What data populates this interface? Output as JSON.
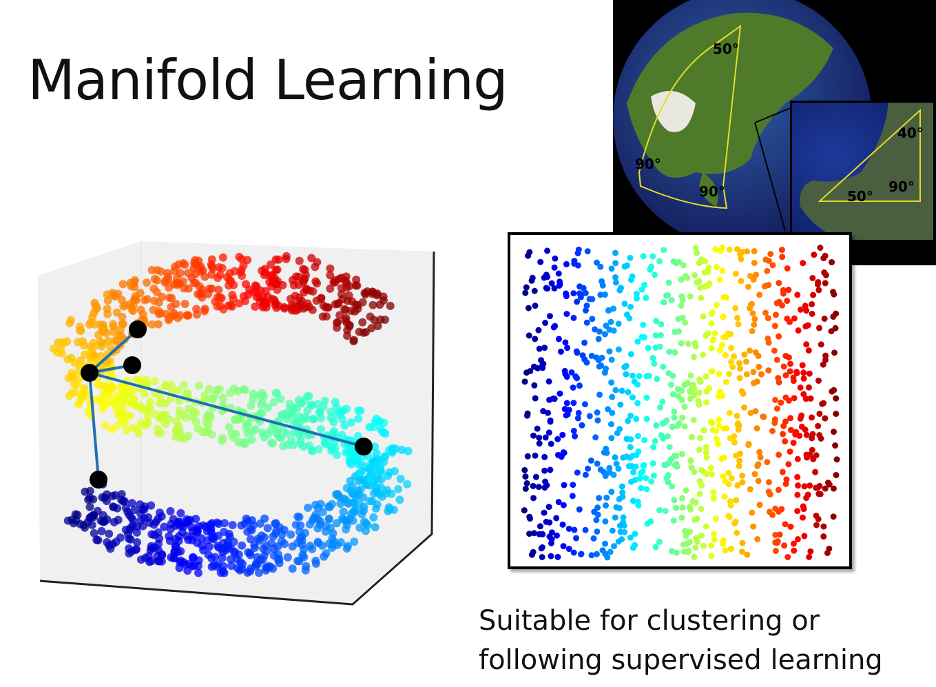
{
  "title": "Manifold Learning",
  "globe": {
    "labels": {
      "top": "50°",
      "left": "90°",
      "bottom": "90°"
    },
    "inset_labels": {
      "top": "40°",
      "left": "50°",
      "right": "90°"
    }
  },
  "caption": {
    "line1": "Suitable for clustering or",
    "line2": "following supervised learning"
  },
  "colors": {
    "line": "#1f6fb4",
    "marker": "#000000",
    "colormap": "jet"
  }
}
